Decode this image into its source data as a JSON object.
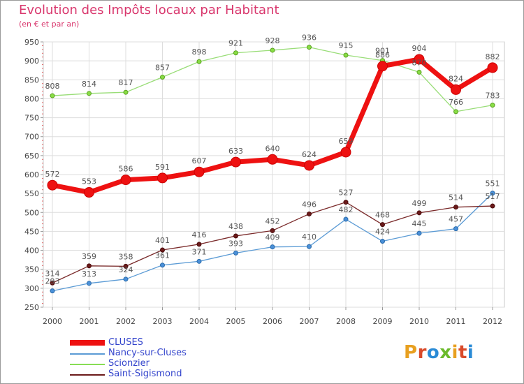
{
  "title": "Evolution des Impôts locaux par Habitant",
  "subtitle": "(en € et par an)",
  "logo": {
    "text": "Proxiti",
    "colors": [
      "#e8a020",
      "#d94a2a",
      "#2a8bd6",
      "#6aba2a",
      "#e8a020",
      "#d94a2a",
      "#2a8bd6"
    ]
  },
  "chart_data": {
    "type": "line",
    "x": [
      "2000",
      "2001",
      "2002",
      "2003",
      "2004",
      "2005",
      "2006",
      "2007",
      "2008",
      "2009",
      "2010",
      "2011",
      "2012"
    ],
    "ylim": [
      250,
      950
    ],
    "yticks": [
      250,
      300,
      350,
      400,
      450,
      500,
      550,
      600,
      650,
      700,
      750,
      800,
      850,
      900,
      950
    ],
    "grid": true,
    "legend_position": "bottom-left",
    "series": [
      {
        "name": "CLUSES",
        "color": "#ee1111",
        "values": [
          572,
          553,
          586,
          591,
          607,
          633,
          640,
          624,
          659,
          886,
          904,
          824,
          882
        ],
        "labels": [
          "572",
          "553",
          "586",
          "591",
          "607",
          "633",
          "640",
          "624",
          "659",
          "886",
          "904",
          "824",
          "882"
        ]
      },
      {
        "name": "Nancy-sur-Cluses",
        "color": "#5b9bd5",
        "values": [
          293,
          313,
          324,
          361,
          371,
          393,
          409,
          410,
          482,
          424,
          445,
          457,
          551
        ],
        "labels": [
          "293",
          "313",
          "324",
          "361",
          "371",
          "393",
          "409",
          "410",
          "482",
          "424",
          "445",
          "457",
          "551"
        ]
      },
      {
        "name": "Scionzier",
        "color": "#88dd55",
        "values": [
          808,
          814,
          817,
          857,
          898,
          921,
          928,
          936,
          915,
          901,
          870,
          766,
          783
        ],
        "labels": [
          "808",
          "814",
          "817",
          "857",
          "898",
          "921",
          "928",
          "936",
          "915",
          "901",
          "870",
          "766",
          "783"
        ]
      },
      {
        "name": "Saint-Sigismond",
        "color": "#6b1a1a",
        "values": [
          314,
          359,
          358,
          401,
          416,
          438,
          452,
          496,
          527,
          468,
          499,
          514,
          517
        ],
        "labels": [
          "314",
          "359",
          "358",
          "401",
          "416",
          "438",
          "452",
          "496",
          "527",
          "468",
          "499",
          "514",
          "517"
        ]
      }
    ]
  }
}
